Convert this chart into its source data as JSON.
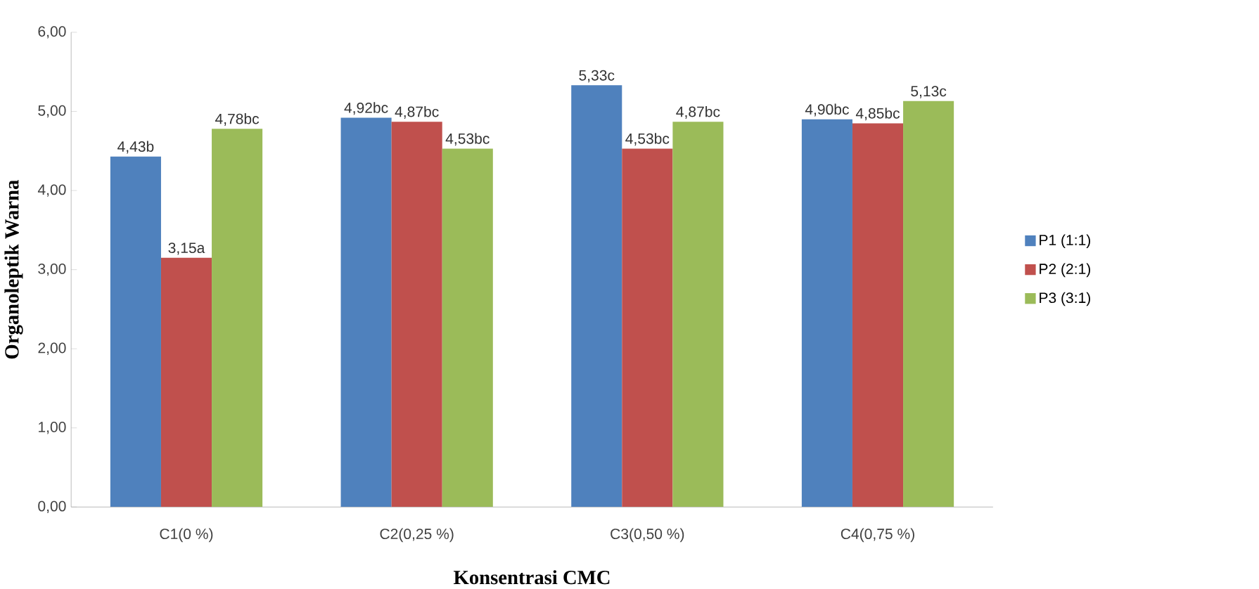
{
  "chart_data": {
    "type": "bar",
    "xlabel": "Konsentrasi CMC",
    "ylabel": "Organoleptik Warna",
    "categories": [
      "C1(0 %)",
      "C2(0,25 %)",
      "C3(0,50 %)",
      "C4(0,75 %)"
    ],
    "series": [
      {
        "name": "P1 (1:1)",
        "color": "#4f81bd",
        "values": [
          4.43,
          4.92,
          5.33,
          4.9
        ],
        "value_labels": [
          "4,43b",
          "4,92bc",
          "5,33c",
          "4,90bc"
        ]
      },
      {
        "name": "P2 (2:1)",
        "color": "#c0504d",
        "values": [
          3.15,
          4.87,
          4.53,
          4.85
        ],
        "value_labels": [
          "3,15a",
          "4,87bc",
          "4,53bc",
          "4,85bc"
        ]
      },
      {
        "name": "P3 (3:1)",
        "color": "#9bbb59",
        "values": [
          4.78,
          4.53,
          4.87,
          5.13
        ],
        "value_labels": [
          "4,78bc",
          "4,53bc",
          "4,87bc",
          "5,13c"
        ]
      }
    ],
    "ylim": [
      0,
      6
    ],
    "yticks": [
      {
        "value": 0,
        "label": "0,00"
      },
      {
        "value": 1,
        "label": "1,00"
      },
      {
        "value": 2,
        "label": "2,00"
      },
      {
        "value": 3,
        "label": "3,00"
      },
      {
        "value": 4,
        "label": "4,00"
      },
      {
        "value": 5,
        "label": "5,00"
      },
      {
        "value": 6,
        "label": "6,00"
      }
    ],
    "grid": false,
    "legend": "right"
  }
}
